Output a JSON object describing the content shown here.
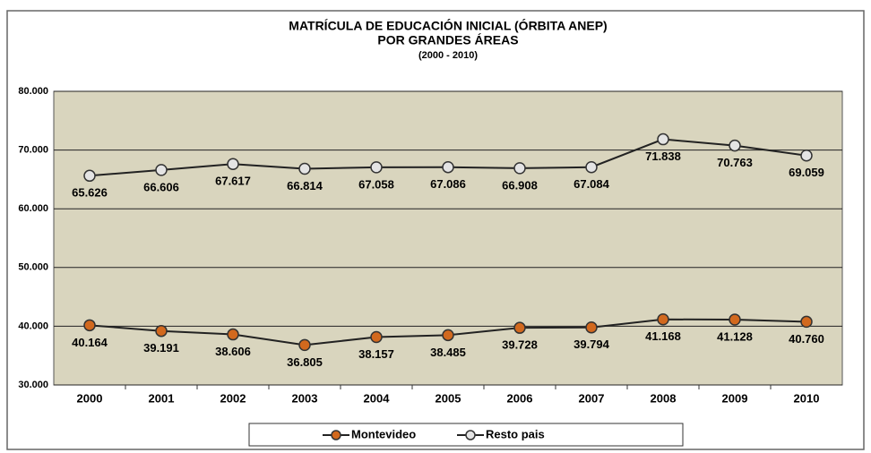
{
  "chart_data": {
    "type": "line",
    "title": "MATRÍCULA DE EDUCACIÓN INICIAL (ÓRBITA ANEP)",
    "subtitle": "POR GRANDES ÁREAS",
    "period": "(2000 - 2010)",
    "categories": [
      "2000",
      "2001",
      "2002",
      "2003",
      "2004",
      "2005",
      "2006",
      "2007",
      "2008",
      "2009",
      "2010"
    ],
    "series": [
      {
        "name": "Montevideo",
        "color": "#d2691e",
        "values": [
          40164,
          39191,
          38606,
          36805,
          38157,
          38485,
          39728,
          39794,
          41168,
          41128,
          40760
        ],
        "value_labels": [
          "40.164",
          "39.191",
          "38.606",
          "36.805",
          "38.157",
          "38.485",
          "39.728",
          "39.794",
          "41.168",
          "41.128",
          "40.760"
        ]
      },
      {
        "name": "Resto pais",
        "color": "#e4e4e4",
        "values": [
          65626,
          66606,
          67617,
          66814,
          67058,
          67086,
          66908,
          67084,
          71838,
          70763,
          69059
        ],
        "value_labels": [
          "65.626",
          "66.606",
          "67.617",
          "66.814",
          "67.058",
          "67.086",
          "66.908",
          "67.084",
          "71.838",
          "70.763",
          "69.059"
        ]
      }
    ],
    "ylim": [
      30000,
      80000
    ],
    "yticks": [
      {
        "value": 30000,
        "label": "30.000"
      },
      {
        "value": 40000,
        "label": "40.000"
      },
      {
        "value": 50000,
        "label": "50.000"
      },
      {
        "value": 60000,
        "label": "60.000"
      },
      {
        "value": 70000,
        "label": "70.000"
      },
      {
        "value": 80000,
        "label": "80.000"
      }
    ],
    "grid": true,
    "legend": "bottom"
  }
}
